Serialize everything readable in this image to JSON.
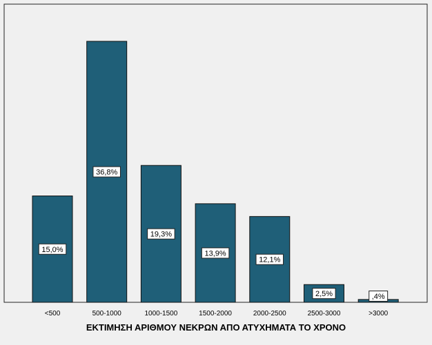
{
  "chart_data": {
    "type": "bar",
    "title": "",
    "xlabel": "ΕΚΤΙΜΗΣΗ ΑΡΙΘΜΟΥ ΝΕΚΡΩΝ ΑΠΟ ΑΤΥΧΗΜΑΤΑ ΤΟ ΧΡΟΝΟ",
    "ylabel": "",
    "categories": [
      "<500",
      "500-1000",
      "1000-1500",
      "1500-2000",
      "2000-2500",
      "2500-3000",
      ">3000"
    ],
    "values": [
      15.0,
      36.8,
      19.3,
      13.9,
      12.1,
      2.5,
      0.4
    ],
    "data_labels": [
      "15,0%",
      "36,8%",
      "19,3%",
      "13,9%",
      "12,1%",
      "2,5%",
      ",4%"
    ],
    "ylim": [
      0,
      40
    ],
    "grid": false,
    "legend": "none",
    "colors": {
      "bar": "#1f5f78",
      "bar_stroke": "#111111",
      "plot_background": "#f0f0f0",
      "frame": "#222222"
    }
  }
}
